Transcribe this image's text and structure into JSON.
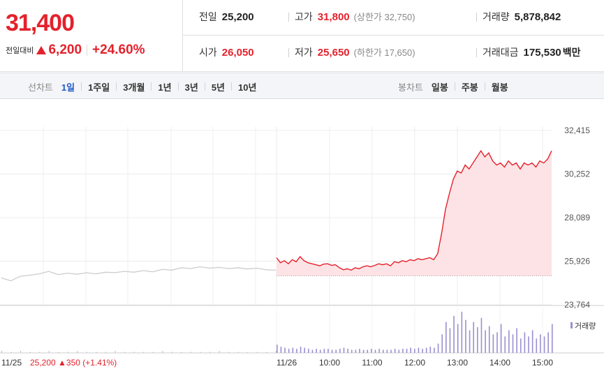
{
  "summary": {
    "price": "31,400",
    "change_label": "전일대비",
    "change_value": "6,200",
    "change_pct": "+24.60%",
    "prev_label": "전일",
    "prev_value": "25,200",
    "high_label": "고가",
    "high_value": "31,800",
    "high_sub": "(상한가 32,750)",
    "volume_label": "거래량",
    "volume_value": "5,878,842",
    "open_label": "시가",
    "open_value": "26,050",
    "low_label": "저가",
    "low_value": "25,650",
    "low_sub": "(하한가 17,650)",
    "amount_label": "거래대금",
    "amount_value": "175,530",
    "amount_unit": "백만"
  },
  "tabs": {
    "line_title": "선차트",
    "line_tabs": [
      "1일",
      "1주일",
      "3개월",
      "1년",
      "3년",
      "5년",
      "10년"
    ],
    "line_active": 0,
    "candle_title": "봉차트",
    "candle_tabs": [
      "일봉",
      "주봉",
      "월봉"
    ]
  },
  "colors": {
    "up": "#e4212c",
    "active_tab": "#1e58c6",
    "prev_line": "#cccccc",
    "area_fill": "#fde3e5",
    "volume": "#9a8fd0"
  },
  "chart_data": {
    "type": "line",
    "y_ticks": [
      "32,415",
      "30,252",
      "28,089",
      "25,926",
      "23,764"
    ],
    "ylim": [
      23764,
      32415
    ],
    "x_labels": [
      "11/26",
      "10:00",
      "11:00",
      "12:00",
      "13:00",
      "14:00",
      "15:00"
    ],
    "prev_day_label": "11/25",
    "prev_day_info": "25,200 ▲350 (+1.41%)",
    "volume_legend": "거래량",
    "base_price": 25200,
    "prev_day_series": [
      25100,
      24950,
      25180,
      25230,
      25300,
      25420,
      25260,
      25330,
      25280,
      25350,
      25300,
      25380,
      25360,
      25420,
      25380,
      25460,
      25400,
      25520,
      25480,
      25600,
      25560,
      25650,
      25580,
      25620,
      25560,
      25600,
      25540,
      25580,
      25500,
      25480
    ],
    "today_series": [
      26100,
      25850,
      25950,
      25800,
      26000,
      25900,
      26150,
      25950,
      25850,
      25800,
      25750,
      25700,
      25780,
      25800,
      25720,
      25750,
      25600,
      25500,
      25550,
      25480,
      25600,
      25550,
      25650,
      25700,
      25650,
      25720,
      25800,
      25750,
      25800,
      25700,
      25900,
      25850,
      25950,
      25900,
      26000,
      25950,
      26050,
      26000,
      26050,
      26100,
      26000,
      26300,
      27300,
      28500,
      29300,
      30000,
      30400,
      30300,
      30700,
      30500,
      30800,
      31100,
      31400,
      31100,
      31300,
      30900,
      30700,
      30800,
      30600,
      30900,
      30700,
      30800,
      30500,
      30800,
      30700,
      30800,
      30600,
      30900,
      30800,
      31000,
      31400
    ],
    "volume_today": [
      8,
      6,
      5,
      4,
      5,
      4,
      6,
      5,
      4,
      3,
      4,
      3,
      4,
      4,
      3,
      3,
      4,
      5,
      4,
      3,
      3,
      4,
      3,
      3,
      4,
      3,
      4,
      3,
      3,
      3,
      4,
      3,
      4,
      4,
      5,
      4,
      5,
      4,
      5,
      6,
      5,
      9,
      18,
      30,
      24,
      36,
      28,
      40,
      32,
      22,
      30,
      25,
      34,
      22,
      26,
      18,
      20,
      28,
      16,
      22,
      18,
      24,
      14,
      20,
      16,
      22,
      14,
      18,
      16,
      20,
      28
    ],
    "volume_prev": [
      2,
      1,
      2,
      1,
      1,
      2,
      1,
      1,
      2,
      1,
      1,
      1,
      2,
      1,
      1,
      1,
      1,
      2,
      1,
      1,
      1,
      1,
      1,
      2,
      1,
      1,
      1,
      1,
      1,
      2
    ]
  }
}
